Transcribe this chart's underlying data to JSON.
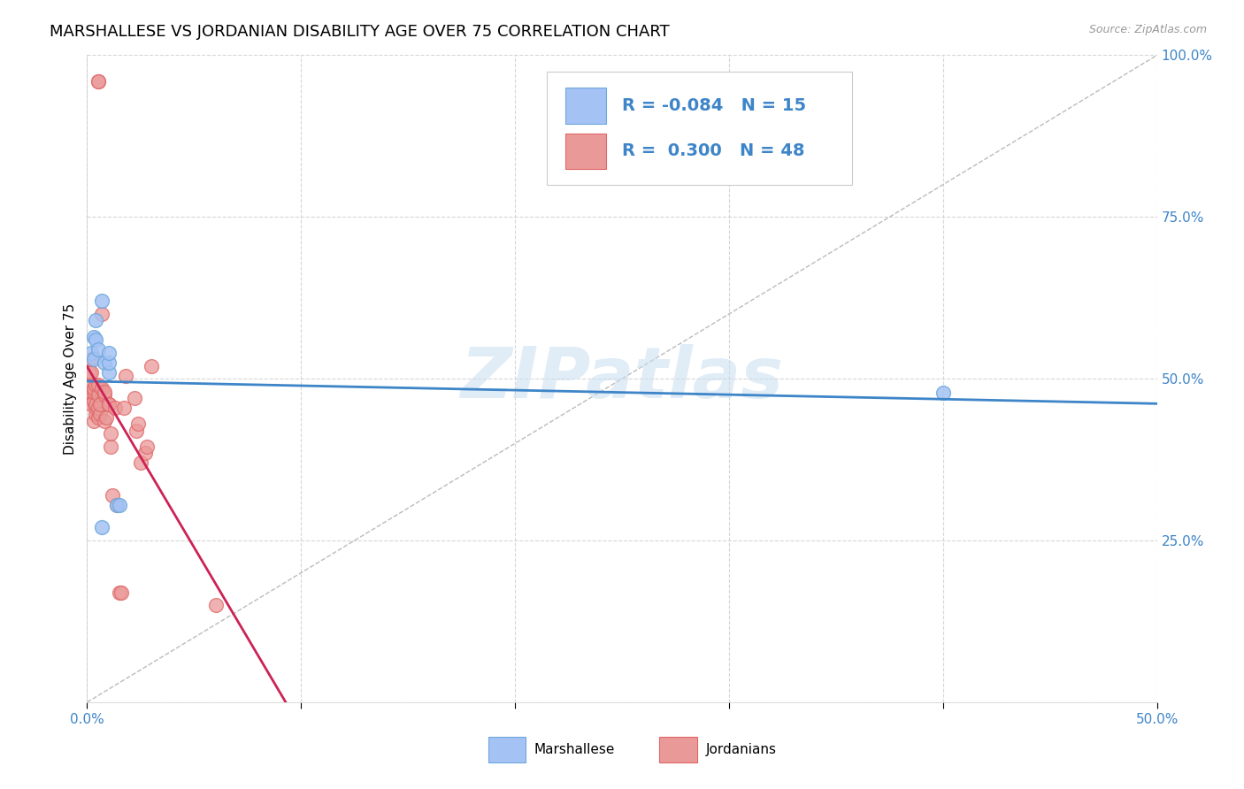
{
  "title": "MARSHALLESE VS JORDANIAN DISABILITY AGE OVER 75 CORRELATION CHART",
  "source": "Source: ZipAtlas.com",
  "ylabel_label": "Disability Age Over 75",
  "xlim": [
    0.0,
    0.5
  ],
  "ylim": [
    0.0,
    1.0
  ],
  "legend_labels": [
    "Marshallese",
    "Jordanians"
  ],
  "marshallese_R": -0.084,
  "marshallese_N": 15,
  "jordanian_R": 0.3,
  "jordanian_N": 48,
  "blue_color": "#a4c2f4",
  "pink_color": "#ea9999",
  "blue_scatter_edge": "#6fa8dc",
  "pink_scatter_edge": "#e06666",
  "blue_line_color": "#3d85c8",
  "pink_line_color": "#cc2255",
  "watermark": "ZIPatlas",
  "marshallese_x": [
    0.002,
    0.003,
    0.003,
    0.004,
    0.004,
    0.005,
    0.007,
    0.007,
    0.008,
    0.01,
    0.01,
    0.01,
    0.014,
    0.015,
    0.4
  ],
  "marshallese_y": [
    0.54,
    0.565,
    0.53,
    0.56,
    0.59,
    0.545,
    0.62,
    0.27,
    0.525,
    0.51,
    0.525,
    0.54,
    0.305,
    0.305,
    0.478
  ],
  "jordanian_x": [
    0.001,
    0.001,
    0.002,
    0.002,
    0.002,
    0.002,
    0.002,
    0.003,
    0.003,
    0.003,
    0.003,
    0.004,
    0.004,
    0.004,
    0.004,
    0.005,
    0.005,
    0.005,
    0.005,
    0.006,
    0.006,
    0.007,
    0.007,
    0.008,
    0.008,
    0.008,
    0.009,
    0.01,
    0.01,
    0.011,
    0.011,
    0.012,
    0.013,
    0.014,
    0.015,
    0.016,
    0.017,
    0.018,
    0.022,
    0.023,
    0.024,
    0.025,
    0.027,
    0.028,
    0.03,
    0.005,
    0.005,
    0.06
  ],
  "jordanian_y": [
    0.48,
    0.51,
    0.46,
    0.48,
    0.49,
    0.51,
    0.53,
    0.435,
    0.465,
    0.48,
    0.485,
    0.445,
    0.455,
    0.46,
    0.49,
    0.44,
    0.455,
    0.475,
    0.49,
    0.445,
    0.46,
    0.485,
    0.6,
    0.435,
    0.475,
    0.48,
    0.44,
    0.46,
    0.46,
    0.395,
    0.415,
    0.32,
    0.455,
    0.305,
    0.17,
    0.17,
    0.455,
    0.505,
    0.47,
    0.42,
    0.43,
    0.37,
    0.385,
    0.395,
    0.52,
    0.96,
    0.96,
    0.15
  ],
  "grid_color": "#cccccc",
  "background_color": "#ffffff",
  "title_fontsize": 13,
  "axis_label_fontsize": 11,
  "tick_fontsize": 11,
  "legend_fontsize": 14
}
